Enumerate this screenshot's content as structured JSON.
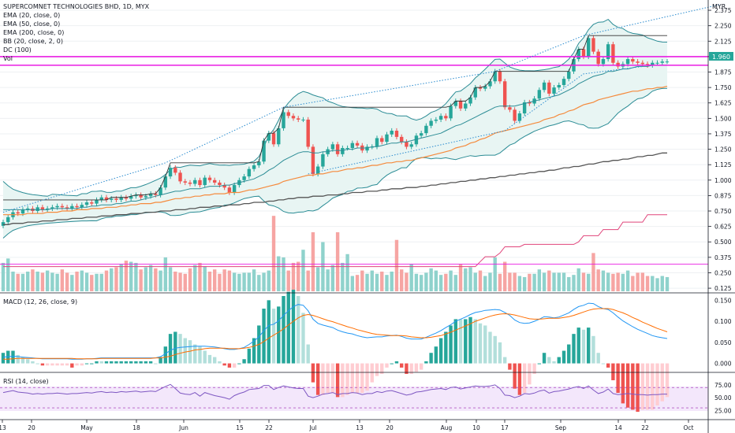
{
  "header": {
    "title": "SUPERCOMNET TECHNOLOGIES BHD, 1D, MYX",
    "indicators": [
      "EMA (20, close, 0)",
      "EMA (50, close, 0)",
      "EMA (200, close, 0)",
      "BB (20, close, 2, 0)",
      "DC (100)",
      "Vol"
    ]
  },
  "currency": "MYR",
  "last_price_label": "1.960",
  "macd_label": "MACD (12, 26, close, 9)",
  "rsi_label": "RSI (14, close)",
  "colors": {
    "up": "#26a69a",
    "down": "#ef5350",
    "band_fill": "#e8f5f3",
    "macd": "#2196f3",
    "signal": "#ff6d00",
    "rsi": "#7e57c2",
    "magenta": "#e91ee3"
  },
  "x_tick_labels": [
    "13",
    "20",
    "May",
    "18",
    "Jun",
    "15",
    "22",
    "Jul",
    "13",
    "20",
    "Aug",
    "10",
    "17",
    "Sep",
    "14",
    "22",
    "Oct"
  ],
  "price_ticks": [
    "2.375",
    "2.250",
    "2.125",
    "2.000",
    "1.875",
    "1.750",
    "1.625",
    "1.500",
    "1.375",
    "1.250",
    "1.125",
    "1.000",
    "0.875",
    "0.750",
    "0.625",
    "0.500",
    "0.375",
    "0.250",
    "0.125"
  ],
  "macd_ticks": [
    "0.150",
    "0.100",
    "0.050",
    "0.000"
  ],
  "rsi_ticks": [
    "75.00",
    "50.00",
    "25.00"
  ],
  "chart_data": {
    "type": "candlestick",
    "title": "SUPERCOMNET TECHNOLOGIES BHD, 1D, MYX",
    "price_range": [
      0.1,
      2.42
    ],
    "close": [
      0.66,
      0.7,
      0.74,
      0.73,
      0.76,
      0.77,
      0.75,
      0.78,
      0.76,
      0.77,
      0.78,
      0.79,
      0.78,
      0.77,
      0.79,
      0.78,
      0.8,
      0.82,
      0.81,
      0.84,
      0.86,
      0.84,
      0.85,
      0.84,
      0.86,
      0.85,
      0.87,
      0.88,
      0.86,
      0.87,
      0.89,
      0.88,
      0.94,
      1.03,
      1.1,
      1.06,
      0.99,
      0.98,
      0.97,
      1.0,
      0.96,
      1.02,
      1.0,
      0.98,
      0.96,
      0.94,
      0.9,
      0.96,
      1.0,
      1.03,
      1.09,
      1.12,
      1.15,
      1.32,
      1.38,
      1.29,
      1.42,
      1.55,
      1.52,
      1.5,
      1.49,
      1.49,
      1.27,
      1.05,
      1.11,
      1.21,
      1.25,
      1.29,
      1.21,
      1.26,
      1.26,
      1.3,
      1.28,
      1.24,
      1.27,
      1.27,
      1.34,
      1.31,
      1.37,
      1.4,
      1.35,
      1.31,
      1.27,
      1.29,
      1.36,
      1.38,
      1.44,
      1.48,
      1.49,
      1.52,
      1.5,
      1.6,
      1.64,
      1.58,
      1.62,
      1.67,
      1.75,
      1.74,
      1.76,
      1.8,
      1.88,
      1.8,
      1.59,
      1.57,
      1.48,
      1.54,
      1.63,
      1.62,
      1.66,
      1.73,
      1.79,
      1.7,
      1.75,
      1.77,
      1.82,
      1.88,
      1.98,
      2.06,
      2.0,
      2.15,
      2.04,
      1.94,
      1.98,
      2.1,
      1.95,
      1.92,
      1.94,
      1.98,
      1.96,
      1.95,
      1.94,
      1.93,
      1.95,
      1.95,
      1.96,
      1.96
    ],
    "ema_20": [
      0.76,
      0.76,
      0.76,
      0.76,
      0.76,
      0.76,
      0.76,
      0.76,
      0.76,
      0.76,
      0.77,
      0.77,
      0.77,
      0.77,
      0.77,
      0.77,
      0.78,
      0.78,
      0.79,
      0.79,
      0.8,
      0.8,
      0.8,
      0.81,
      0.81,
      0.82,
      0.83,
      0.83,
      0.84,
      0.85,
      0.86,
      0.87,
      0.88,
      0.89,
      0.9,
      0.91,
      0.91,
      0.92,
      0.93,
      0.93,
      0.93,
      0.94,
      0.95,
      0.95,
      0.95,
      0.96,
      0.96,
      0.97,
      0.98,
      0.99,
      1.0,
      1.01,
      1.03,
      1.05,
      1.08,
      1.1,
      1.13,
      1.16,
      1.18,
      1.2,
      1.22,
      1.23,
      1.23,
      1.22,
      1.22,
      1.23,
      1.23,
      1.24,
      1.24,
      1.24,
      1.25,
      1.25,
      1.26,
      1.26,
      1.26,
      1.27,
      1.27,
      1.28,
      1.29,
      1.3,
      1.3,
      1.31,
      1.31,
      1.32,
      1.33,
      1.34,
      1.35,
      1.36,
      1.37,
      1.38,
      1.4,
      1.42,
      1.44,
      1.45,
      1.47,
      1.49,
      1.51,
      1.53,
      1.55,
      1.57,
      1.59,
      1.6,
      1.6,
      1.6,
      1.6,
      1.61,
      1.62,
      1.63,
      1.64,
      1.65,
      1.66,
      1.67,
      1.68,
      1.69,
      1.71,
      1.73,
      1.75,
      1.78,
      1.8,
      1.82,
      1.84,
      1.85,
      1.86,
      1.88,
      1.88,
      1.89,
      1.9,
      1.9,
      1.91,
      1.92,
      1.92,
      1.92,
      1.93,
      1.93,
      1.93,
      1.93
    ],
    "ema_50": [
      0.72,
      0.72,
      0.72,
      0.72,
      0.72,
      0.73,
      0.73,
      0.73,
      0.73,
      0.74,
      0.74,
      0.74,
      0.75,
      0.75,
      0.75,
      0.76,
      0.76,
      0.76,
      0.77,
      0.77,
      0.77,
      0.78,
      0.78,
      0.78,
      0.79,
      0.79,
      0.8,
      0.8,
      0.81,
      0.81,
      0.81,
      0.82,
      0.82,
      0.83,
      0.84,
      0.85,
      0.85,
      0.86,
      0.86,
      0.87,
      0.87,
      0.88,
      0.88,
      0.89,
      0.89,
      0.89,
      0.9,
      0.9,
      0.9,
      0.91,
      0.92,
      0.92,
      0.93,
      0.94,
      0.95,
      0.96,
      0.97,
      0.99,
      1.0,
      1.01,
      1.02,
      1.03,
      1.04,
      1.04,
      1.05,
      1.05,
      1.06,
      1.07,
      1.07,
      1.08,
      1.09,
      1.09,
      1.1,
      1.1,
      1.11,
      1.12,
      1.12,
      1.13,
      1.14,
      1.14,
      1.15,
      1.15,
      1.16,
      1.16,
      1.17,
      1.18,
      1.19,
      1.2,
      1.21,
      1.22,
      1.23,
      1.24,
      1.26,
      1.27,
      1.28,
      1.3,
      1.31,
      1.33,
      1.34,
      1.36,
      1.38,
      1.39,
      1.4,
      1.41,
      1.42,
      1.43,
      1.44,
      1.45,
      1.46,
      1.47,
      1.49,
      1.5,
      1.51,
      1.53,
      1.54,
      1.56,
      1.57,
      1.59,
      1.61,
      1.62,
      1.63,
      1.65,
      1.66,
      1.67,
      1.68,
      1.69,
      1.7,
      1.71,
      1.72,
      1.72,
      1.73,
      1.74,
      1.74,
      1.75,
      1.75,
      1.76
    ],
    "ema_200": [
      0.64,
      0.64,
      0.65,
      0.65,
      0.65,
      0.66,
      0.66,
      0.66,
      0.67,
      0.67,
      0.67,
      0.68,
      0.68,
      0.68,
      0.69,
      0.69,
      0.69,
      0.7,
      0.7,
      0.7,
      0.71,
      0.71,
      0.71,
      0.72,
      0.72,
      0.72,
      0.73,
      0.73,
      0.73,
      0.74,
      0.74,
      0.74,
      0.75,
      0.75,
      0.75,
      0.76,
      0.76,
      0.76,
      0.77,
      0.77,
      0.78,
      0.78,
      0.78,
      0.79,
      0.79,
      0.79,
      0.8,
      0.8,
      0.8,
      0.81,
      0.81,
      0.82,
      0.82,
      0.82,
      0.83,
      0.83,
      0.84,
      0.84,
      0.85,
      0.85,
      0.86,
      0.86,
      0.86,
      0.87,
      0.87,
      0.87,
      0.88,
      0.88,
      0.88,
      0.89,
      0.89,
      0.9,
      0.9,
      0.9,
      0.91,
      0.91,
      0.91,
      0.92,
      0.92,
      0.93,
      0.93,
      0.93,
      0.94,
      0.94,
      0.94,
      0.95,
      0.95,
      0.96,
      0.96,
      0.97,
      0.97,
      0.98,
      0.98,
      0.99,
      0.99,
      1.0,
      1.0,
      1.01,
      1.01,
      1.02,
      1.02,
      1.03,
      1.03,
      1.04,
      1.04,
      1.05,
      1.05,
      1.06,
      1.06,
      1.07,
      1.07,
      1.08,
      1.08,
      1.09,
      1.1,
      1.1,
      1.11,
      1.11,
      1.12,
      1.13,
      1.13,
      1.14,
      1.15,
      1.15,
      1.16,
      1.16,
      1.17,
      1.17,
      1.18,
      1.19,
      1.19,
      1.2,
      1.2,
      1.21,
      1.22,
      1.22
    ],
    "volume": [
      0.26,
      0.3,
      0.18,
      0.16,
      0.16,
      0.18,
      0.2,
      0.18,
      0.17,
      0.19,
      0.17,
      0.16,
      0.2,
      0.17,
      0.15,
      0.18,
      0.19,
      0.17,
      0.15,
      0.16,
      0.16,
      0.19,
      0.21,
      0.22,
      0.25,
      0.28,
      0.27,
      0.26,
      0.2,
      0.22,
      0.24,
      0.21,
      0.19,
      0.31,
      0.22,
      0.18,
      0.17,
      0.16,
      0.21,
      0.24,
      0.26,
      0.23,
      0.18,
      0.2,
      0.16,
      0.2,
      0.19,
      0.17,
      0.16,
      0.17,
      0.17,
      0.2,
      0.15,
      0.17,
      0.19,
      0.69,
      0.32,
      0.31,
      0.19,
      0.26,
      0.27,
      0.38,
      0.19,
      0.54,
      0.22,
      0.45,
      0.2,
      0.24,
      0.54,
      0.26,
      0.34,
      0.14,
      0.15,
      0.19,
      0.16,
      0.19,
      0.16,
      0.18,
      0.15,
      0.18,
      0.47,
      0.2,
      0.17,
      0.25,
      0.16,
      0.15,
      0.17,
      0.21,
      0.19,
      0.15,
      0.16,
      0.19,
      0.15,
      0.25,
      0.21,
      0.22,
      0.17,
      0.19,
      0.14,
      0.17,
      0.31,
      0.16,
      0.27,
      0.17,
      0.17,
      0.14,
      0.13,
      0.16,
      0.16,
      0.2,
      0.17,
      0.19,
      0.17,
      0.17,
      0.17,
      0.13,
      0.15,
      0.21,
      0.17,
      0.16,
      0.35,
      0.2,
      0.19,
      0.17,
      0.16,
      0.17,
      0.16,
      0.19,
      0.14,
      0.17,
      0.17,
      0.14,
      0.14,
      0.12,
      0.14,
      0.13
    ],
    "dc_upper": [
      0.84,
      0.84,
      0.84,
      0.84,
      0.84,
      0.84,
      0.84,
      0.84,
      0.84,
      0.84,
      0.84,
      0.84,
      0.84,
      0.84,
      0.84,
      0.84,
      0.84,
      0.84,
      0.84,
      0.84,
      0.84,
      0.84,
      0.86,
      0.86,
      0.86,
      0.86,
      0.87,
      0.88,
      0.88,
      0.88,
      0.89,
      0.89,
      0.94,
      1.03,
      1.14,
      1.14,
      1.14,
      1.14,
      1.14,
      1.14,
      1.14,
      1.14,
      1.14,
      1.14,
      1.14,
      1.14,
      1.14,
      1.14,
      1.14,
      1.14,
      1.14,
      1.14,
      1.15,
      1.32,
      1.38,
      1.38,
      1.42,
      1.59,
      1.59,
      1.59,
      1.59,
      1.59,
      1.59,
      1.59,
      1.59,
      1.59,
      1.59,
      1.59,
      1.59,
      1.59,
      1.59,
      1.59,
      1.59,
      1.59,
      1.59,
      1.59,
      1.59,
      1.59,
      1.59,
      1.59,
      1.59,
      1.59,
      1.59,
      1.59,
      1.59,
      1.59,
      1.59,
      1.59,
      1.59,
      1.59,
      1.59,
      1.6,
      1.64,
      1.64,
      1.64,
      1.67,
      1.75,
      1.75,
      1.76,
      1.8,
      1.88,
      1.88,
      1.88,
      1.88,
      1.88,
      1.88,
      1.88,
      1.88,
      1.88,
      1.88,
      1.88,
      1.88,
      1.88,
      1.88,
      1.88,
      1.88,
      1.98,
      2.06,
      2.06,
      2.17,
      2.17,
      2.17,
      2.17,
      2.17,
      2.17,
      2.17,
      2.17,
      2.17,
      2.17,
      2.17,
      2.17,
      2.17,
      2.17,
      2.17,
      2.17,
      2.17
    ],
    "dc_lower": [
      0.3,
      0.3,
      0.3,
      0.3,
      0.3,
      0.3,
      0.3,
      0.3,
      0.3,
      0.3,
      0.3,
      0.3,
      0.3,
      0.3,
      0.3,
      0.3,
      0.3,
      0.3,
      0.3,
      0.3,
      0.3,
      0.3,
      0.3,
      0.3,
      0.3,
      0.3,
      0.3,
      0.3,
      0.3,
      0.3,
      0.3,
      0.3,
      0.3,
      0.3,
      0.3,
      0.3,
      0.3,
      0.3,
      0.3,
      0.3,
      0.3,
      0.3,
      0.3,
      0.3,
      0.3,
      0.3,
      0.3,
      0.3,
      0.3,
      0.3,
      0.3,
      0.3,
      0.3,
      0.3,
      0.3,
      0.3,
      0.3,
      0.3,
      0.3,
      0.3,
      0.3,
      0.3,
      0.3,
      0.3,
      0.3,
      0.3,
      0.3,
      0.3,
      0.3,
      0.3,
      0.3,
      0.3,
      0.3,
      0.3,
      0.3,
      0.3,
      0.3,
      0.3,
      0.3,
      0.3,
      0.3,
      0.3,
      0.3,
      0.3,
      0.3,
      0.3,
      0.3,
      0.3,
      0.3,
      0.3,
      0.3,
      0.3,
      0.3,
      0.3,
      0.3,
      0.3,
      0.3,
      0.34,
      0.38,
      0.38,
      0.38,
      0.41,
      0.46,
      0.46,
      0.46,
      0.46,
      0.48,
      0.48,
      0.48,
      0.48,
      0.48,
      0.48,
      0.48,
      0.48,
      0.48,
      0.48,
      0.48,
      0.5,
      0.55,
      0.55,
      0.55,
      0.55,
      0.6,
      0.6,
      0.6,
      0.6,
      0.66,
      0.66,
      0.66,
      0.66,
      0.66,
      0.72,
      0.72,
      0.72,
      0.72,
      0.72
    ],
    "macd": [
      0.015,
      0.016,
      0.017,
      0.016,
      0.015,
      0.014,
      0.013,
      0.012,
      0.011,
      0.011,
      0.011,
      0.011,
      0.011,
      0.011,
      0.01,
      0.01,
      0.01,
      0.011,
      0.011,
      0.012,
      0.013,
      0.013,
      0.013,
      0.013,
      0.013,
      0.013,
      0.013,
      0.013,
      0.013,
      0.013,
      0.013,
      0.013,
      0.016,
      0.023,
      0.031,
      0.036,
      0.038,
      0.039,
      0.04,
      0.041,
      0.041,
      0.041,
      0.04,
      0.039,
      0.037,
      0.035,
      0.033,
      0.033,
      0.035,
      0.038,
      0.045,
      0.053,
      0.063,
      0.078,
      0.09,
      0.093,
      0.101,
      0.114,
      0.125,
      0.135,
      0.14,
      0.138,
      0.125,
      0.105,
      0.095,
      0.091,
      0.088,
      0.085,
      0.079,
      0.075,
      0.072,
      0.07,
      0.066,
      0.063,
      0.061,
      0.062,
      0.063,
      0.063,
      0.065,
      0.066,
      0.067,
      0.064,
      0.06,
      0.058,
      0.058,
      0.058,
      0.062,
      0.067,
      0.072,
      0.078,
      0.085,
      0.092,
      0.1,
      0.105,
      0.11,
      0.116,
      0.121,
      0.123,
      0.126,
      0.127,
      0.128,
      0.127,
      0.121,
      0.114,
      0.103,
      0.097,
      0.095,
      0.096,
      0.1,
      0.105,
      0.111,
      0.11,
      0.108,
      0.11,
      0.115,
      0.12,
      0.128,
      0.135,
      0.138,
      0.143,
      0.142,
      0.135,
      0.13,
      0.128,
      0.12,
      0.11,
      0.101,
      0.094,
      0.087,
      0.081,
      0.076,
      0.071,
      0.066,
      0.063,
      0.061,
      0.059
    ],
    "signal": [
      0.01,
      0.01,
      0.011,
      0.012,
      0.012,
      0.012,
      0.012,
      0.012,
      0.012,
      0.012,
      0.012,
      0.012,
      0.012,
      0.012,
      0.012,
      0.011,
      0.011,
      0.011,
      0.011,
      0.011,
      0.012,
      0.012,
      0.012,
      0.012,
      0.012,
      0.012,
      0.012,
      0.012,
      0.012,
      0.012,
      0.012,
      0.013,
      0.013,
      0.015,
      0.017,
      0.021,
      0.024,
      0.027,
      0.029,
      0.032,
      0.033,
      0.035,
      0.036,
      0.036,
      0.036,
      0.036,
      0.035,
      0.035,
      0.035,
      0.036,
      0.038,
      0.041,
      0.045,
      0.052,
      0.06,
      0.067,
      0.074,
      0.082,
      0.091,
      0.1,
      0.108,
      0.114,
      0.116,
      0.114,
      0.11,
      0.106,
      0.102,
      0.099,
      0.095,
      0.091,
      0.087,
      0.084,
      0.08,
      0.077,
      0.074,
      0.071,
      0.069,
      0.068,
      0.067,
      0.066,
      0.066,
      0.066,
      0.065,
      0.063,
      0.062,
      0.061,
      0.061,
      0.062,
      0.064,
      0.066,
      0.07,
      0.074,
      0.079,
      0.084,
      0.089,
      0.094,
      0.1,
      0.104,
      0.108,
      0.112,
      0.115,
      0.117,
      0.118,
      0.117,
      0.115,
      0.112,
      0.109,
      0.106,
      0.105,
      0.105,
      0.106,
      0.107,
      0.107,
      0.107,
      0.109,
      0.111,
      0.114,
      0.118,
      0.122,
      0.126,
      0.129,
      0.13,
      0.13,
      0.13,
      0.128,
      0.124,
      0.12,
      0.115,
      0.109,
      0.104,
      0.098,
      0.093,
      0.088,
      0.083,
      0.079,
      0.075
    ],
    "rsi": [
      60,
      62,
      64,
      61,
      60,
      59,
      57,
      58,
      57,
      58,
      58,
      59,
      58,
      57,
      58,
      58,
      59,
      60,
      59,
      61,
      62,
      60,
      61,
      60,
      62,
      61,
      62,
      63,
      61,
      62,
      63,
      62,
      67,
      72,
      76,
      68,
      59,
      57,
      56,
      60,
      53,
      60,
      57,
      54,
      52,
      50,
      47,
      54,
      58,
      61,
      66,
      67,
      68,
      74,
      74,
      66,
      70,
      73,
      71,
      69,
      68,
      68,
      53,
      50,
      53,
      57,
      58,
      60,
      56,
      58,
      58,
      60,
      59,
      56,
      58,
      58,
      62,
      60,
      63,
      64,
      61,
      58,
      55,
      57,
      61,
      62,
      64,
      66,
      67,
      68,
      66,
      70,
      71,
      67,
      69,
      71,
      73,
      72,
      72,
      73,
      75,
      68,
      55,
      54,
      50,
      53,
      58,
      57,
      59,
      63,
      65,
      59,
      62,
      63,
      65,
      67,
      70,
      72,
      68,
      73,
      65,
      58,
      61,
      67,
      58,
      56,
      57,
      58,
      57,
      56,
      56,
      55,
      56,
      56,
      57,
      57
    ]
  }
}
